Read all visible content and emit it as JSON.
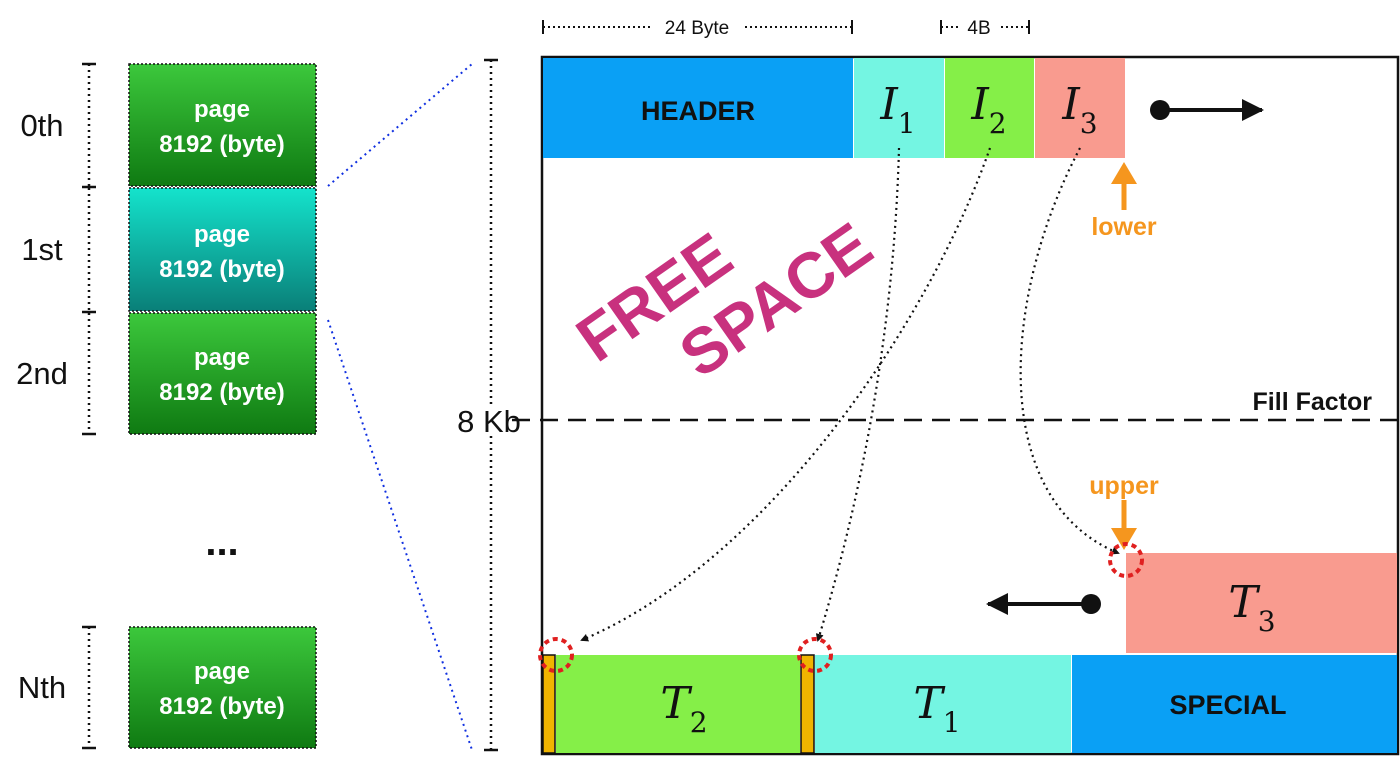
{
  "pages": [
    {
      "index_label": "0th",
      "line1": "page",
      "line2": "8192 (byte)",
      "color": "green"
    },
    {
      "index_label": "1st",
      "line1": "page",
      "line2": "8192 (byte)",
      "color": "teal"
    },
    {
      "index_label": "2nd",
      "line1": "page",
      "line2": "8192 (byte)",
      "color": "green"
    },
    {
      "index_label": "Nth",
      "line1": "page",
      "line2": "8192 (byte)",
      "color": "green"
    }
  ],
  "ellipsis": "...",
  "page_size_label": "8 Kb",
  "top_dims": {
    "header_bytes": "24 Byte",
    "item_bytes": "4B"
  },
  "header_label": "HEADER",
  "items": [
    {
      "letter": "I",
      "sub": "1",
      "color": "#74F5E2"
    },
    {
      "letter": "I",
      "sub": "2",
      "color": "#85EF48"
    },
    {
      "letter": "I",
      "sub": "3",
      "color": "#F99B8F"
    }
  ],
  "tuples": [
    {
      "letter": "T",
      "sub": "2",
      "color": "#85EF48"
    },
    {
      "letter": "T",
      "sub": "1",
      "color": "#74F5E2"
    },
    {
      "letter": "T",
      "sub": "3",
      "color": "#F99B8F"
    }
  ],
  "special_label": "SPECIAL",
  "free_space": {
    "line1": "FREE",
    "line2": "SPACE",
    "color": "#C8317E"
  },
  "fill_factor_label": "Fill Factor",
  "lower_label": "lower",
  "upper_label": "upper",
  "colors": {
    "header": "#0AA0F5",
    "special": "#0AA0F5",
    "pointer_orange": "#F5961E",
    "tuple_header": "#F0B400",
    "highlight_red": "#E02020",
    "page_link_blue": "#1030E0",
    "page_green": "#1A9A1A",
    "page_teal": "#12B0A0"
  }
}
